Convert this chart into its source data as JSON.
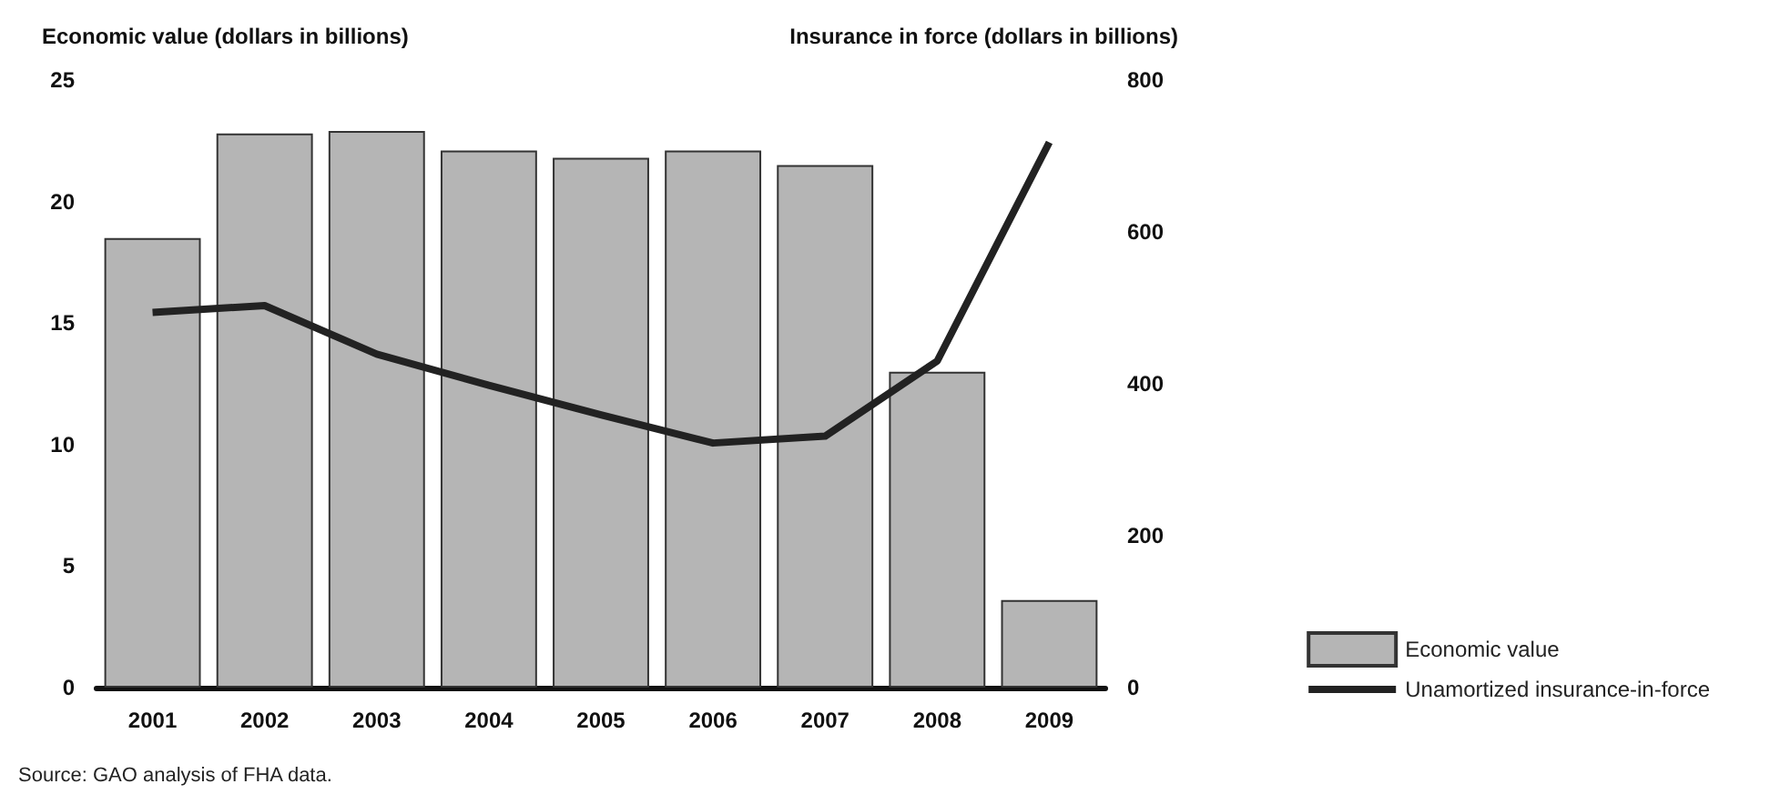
{
  "chart_data": {
    "type": "bar",
    "ylabel": "Economic value (dollars in billions)",
    "y2label": "Insurance in force (dollars in billions)",
    "categories": [
      "2001",
      "2002",
      "2003",
      "2004",
      "2005",
      "2006",
      "2007",
      "2008",
      "2009"
    ],
    "series": [
      {
        "name": "Economic value",
        "color": "#b5b5b5",
        "values": [
          18.5,
          22.8,
          22.9,
          22.1,
          21.8,
          22.1,
          21.5,
          13.0,
          3.6
        ]
      },
      {
        "name": "Unamortized insurance-in-force",
        "type": "line",
        "axis": "y2",
        "color": "#222222",
        "values": [
          494,
          503,
          439,
          398,
          359,
          322,
          331,
          430,
          718
        ]
      }
    ],
    "ylim": [
      0,
      25
    ],
    "yticks": [
      0,
      5,
      10,
      15,
      20,
      25
    ],
    "y2lim": [
      0,
      800
    ],
    "y2ticks": [
      0,
      200,
      400,
      600,
      800
    ],
    "grid": false,
    "legend": "bottom right",
    "marker": "none",
    "line_style": "solid",
    "annotations": [
      "Source: GAO analysis of FHA data."
    ]
  }
}
